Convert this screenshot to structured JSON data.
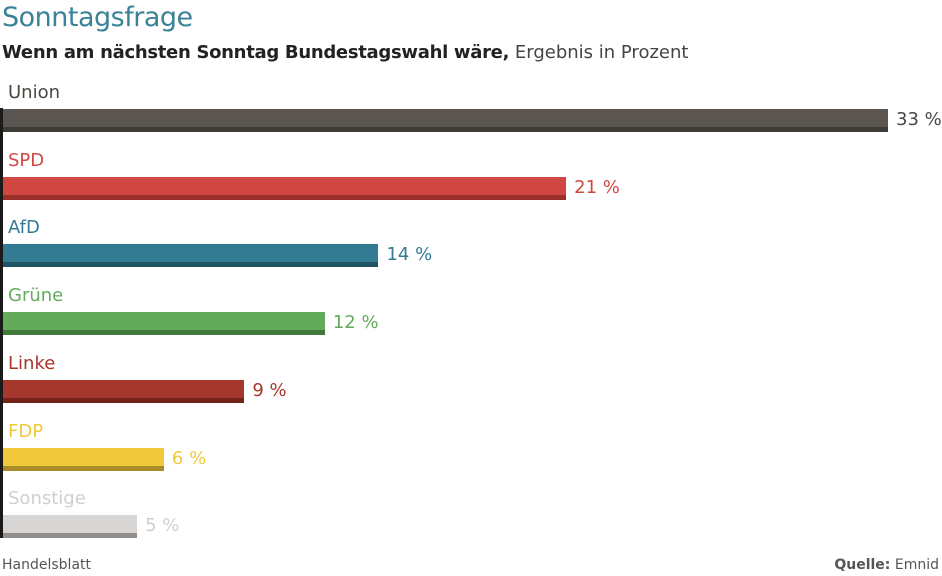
{
  "chart_data": {
    "type": "bar",
    "orientation": "horizontal",
    "title": "Sonntagsfrage",
    "subtitle_bold": "Wenn am nächsten Sonntag Bundestagswahl wäre,",
    "subtitle_regular": "Ergebnis in Prozent",
    "categories": [
      "Union",
      "SPD",
      "AfD",
      "Grüne",
      "Linke",
      "FDP",
      "Sonstige"
    ],
    "values": [
      33,
      21,
      14,
      12,
      9,
      6,
      5
    ],
    "value_labels": [
      "33 %",
      "21 %",
      "14 %",
      "12 %",
      "9 %",
      "6 %",
      "5 %"
    ],
    "unit": "%",
    "xlim": [
      0,
      33
    ],
    "colors": [
      {
        "main": "#5a5550",
        "dark": "#3f3b37",
        "text": "#4a4642"
      },
      {
        "main": "#d04742",
        "dark": "#9a2f2a",
        "text": "#d04742"
      },
      {
        "main": "#337a93",
        "dark": "#1f5464",
        "text": "#337a93"
      },
      {
        "main": "#63ab5a",
        "dark": "#427a3c",
        "text": "#63ab5a"
      },
      {
        "main": "#a6372d",
        "dark": "#76221b",
        "text": "#a6372d"
      },
      {
        "main": "#f0c93a",
        "dark": "#a98b2a",
        "text": "#f0c93a"
      },
      {
        "main": "#d7d6d4",
        "dark": "#938e89",
        "text": "#d0cfcd"
      }
    ],
    "grid": false,
    "legend": "none"
  },
  "footer": {
    "publisher": "Handelsblatt",
    "source_label": "Quelle:",
    "source": "Emnid"
  }
}
